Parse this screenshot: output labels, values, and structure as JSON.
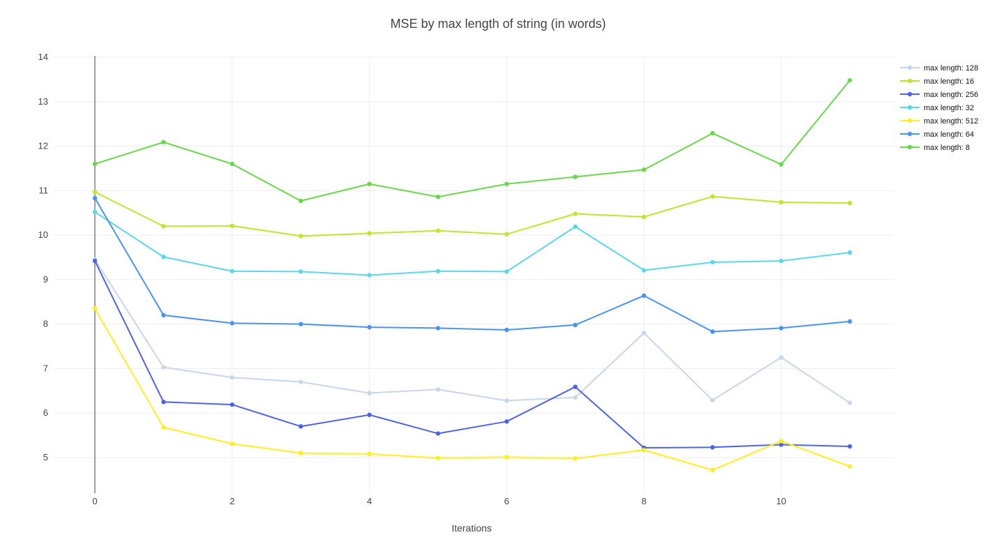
{
  "chart_data": {
    "type": "line",
    "title": "MSE by max length of string (in words)",
    "xlabel": "Iterations",
    "ylabel": "",
    "x": [
      0,
      1,
      2,
      3,
      4,
      5,
      6,
      7,
      8,
      9,
      10,
      11
    ],
    "xlim": [
      -0.6,
      11.65
    ],
    "ylim": [
      4.2,
      14.0
    ],
    "xticks": [
      0,
      2,
      4,
      6,
      8,
      10
    ],
    "yticks": [
      5,
      6,
      7,
      8,
      9,
      10,
      11,
      12,
      13,
      14
    ],
    "grid": true,
    "zero_line_x": 0,
    "legend_position": "top-right",
    "series": [
      {
        "name": "max length: 128",
        "color": "#c9d5e8",
        "values": [
          9.45,
          7.03,
          6.8,
          6.7,
          6.45,
          6.53,
          6.28,
          6.35,
          7.8,
          6.29,
          7.25,
          6.23
        ]
      },
      {
        "name": "max length: 16",
        "color": "#bbe82c",
        "values": [
          10.97,
          10.2,
          10.21,
          9.98,
          10.04,
          10.1,
          10.02,
          10.48,
          10.41,
          10.87,
          10.74,
          10.72
        ]
      },
      {
        "name": "max length: 256",
        "color": "#4d63e8",
        "values": [
          9.42,
          6.25,
          6.19,
          5.7,
          5.96,
          5.54,
          5.81,
          6.59,
          5.22,
          5.23,
          5.29,
          5.25
        ]
      },
      {
        "name": "max length: 32",
        "color": "#5ad8e6",
        "values": [
          10.52,
          9.51,
          9.19,
          9.18,
          9.1,
          9.19,
          9.18,
          10.19,
          9.21,
          9.39,
          9.42,
          9.61
        ]
      },
      {
        "name": "max length: 512",
        "color": "#ffef1e",
        "values": [
          8.35,
          5.68,
          5.31,
          5.1,
          5.08,
          4.99,
          5.01,
          4.98,
          5.17,
          4.72,
          5.37,
          4.8
        ]
      },
      {
        "name": "max length: 64",
        "color": "#4a94ee",
        "values": [
          10.83,
          8.2,
          8.02,
          8.0,
          7.93,
          7.91,
          7.87,
          7.98,
          8.64,
          7.83,
          7.91,
          8.06
        ]
      },
      {
        "name": "max length: 8",
        "color": "#6ad84a",
        "values": [
          11.6,
          12.09,
          11.6,
          10.77,
          11.15,
          10.86,
          11.15,
          11.31,
          11.47,
          12.29,
          11.59,
          13.48
        ]
      }
    ]
  }
}
